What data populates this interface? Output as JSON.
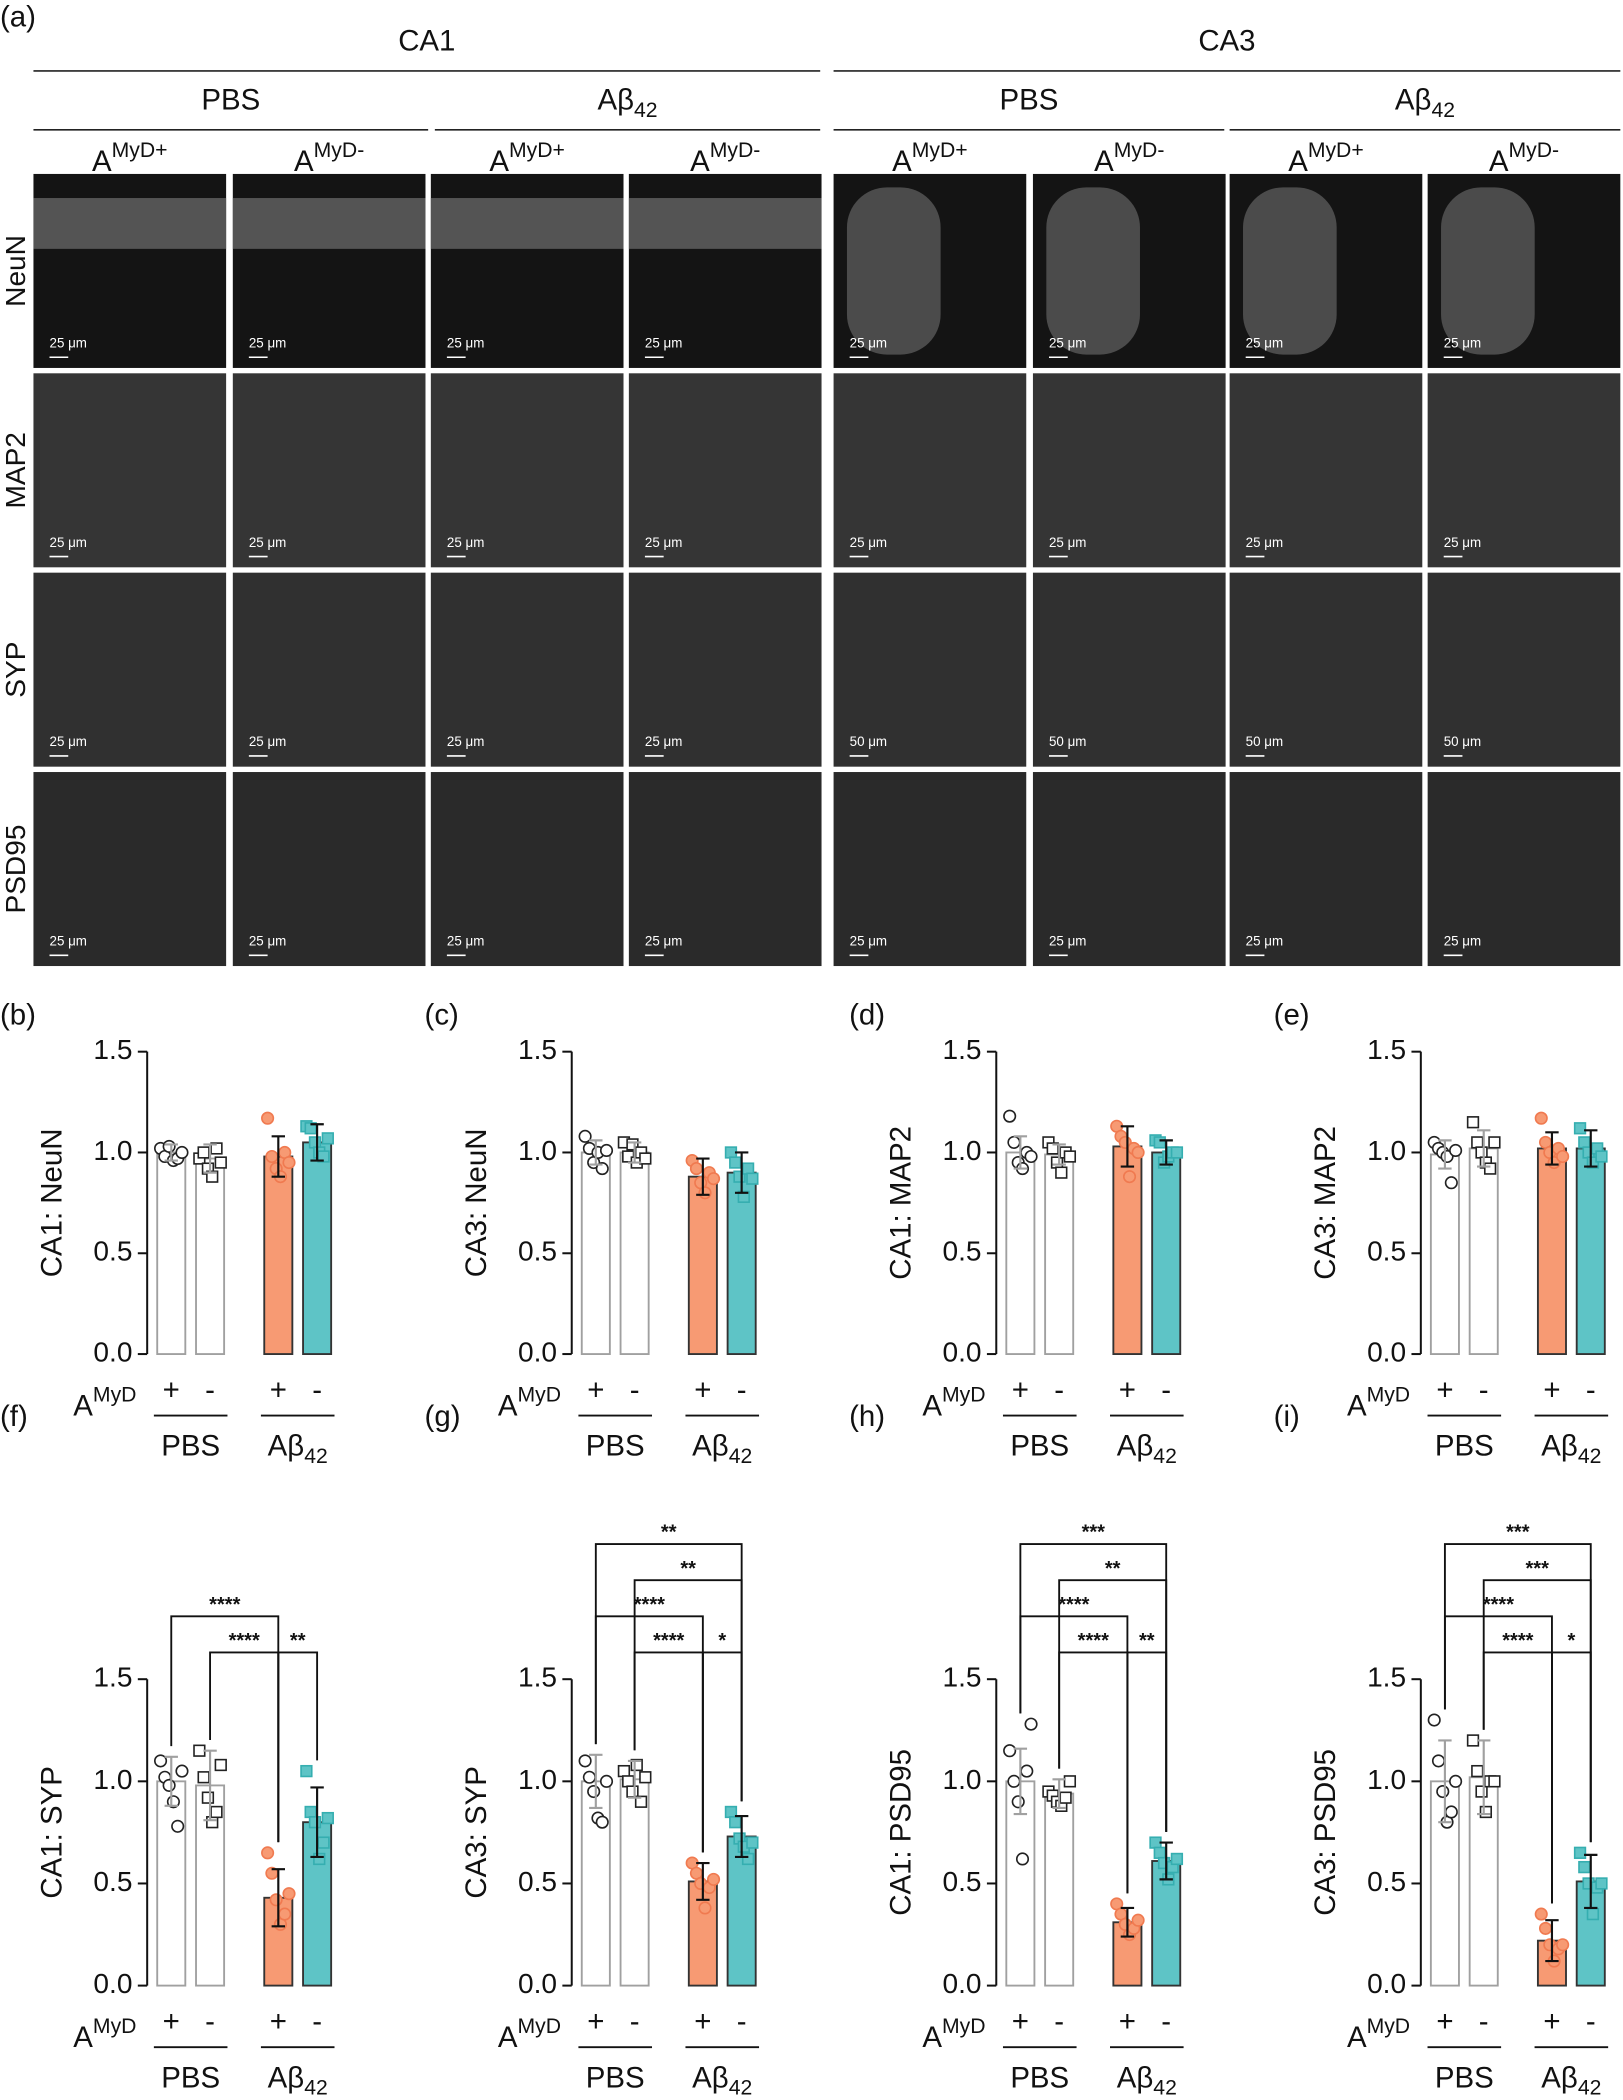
{
  "panel_a": {
    "label": "(a)",
    "regions": [
      "CA1",
      "CA3"
    ],
    "groups": [
      [
        "PBS"
      ],
      [
        "Aβ",
        "42"
      ],
      [
        "PBS"
      ],
      [
        "Aβ",
        "42"
      ]
    ],
    "columns": [
      [
        "A",
        "MyD+"
      ],
      [
        "A",
        "MyD-"
      ],
      [
        "A",
        "MyD+"
      ],
      [
        "A",
        "MyD-"
      ],
      [
        "A",
        "MyD+"
      ],
      [
        "A",
        "MyD-"
      ],
      [
        "A",
        "MyD+"
      ],
      [
        "A",
        "MyD-"
      ]
    ],
    "rows": [
      "NeuN",
      "MAP2",
      "SYP",
      "PSD95"
    ],
    "scale_bars": [
      [
        "25 μm",
        "25 μm",
        "25 μm",
        "25 μm",
        "25 μm",
        "25 μm",
        "25 μm",
        "25 μm"
      ],
      [
        "25 μm",
        "25 μm",
        "25 μm",
        "25 μm",
        "25 μm",
        "25 μm",
        "25 μm",
        "25 μm"
      ],
      [
        "25 μm",
        "25 μm",
        "25 μm",
        "25 μm",
        "50 μm",
        "50 μm",
        "50 μm",
        "50 μm"
      ],
      [
        "25 μm",
        "25 μm",
        "25 μm",
        "25 μm",
        "25 μm",
        "25 μm",
        "25 μm",
        "25 μm"
      ]
    ]
  },
  "chart_data": [
    {
      "type": "bar",
      "panel": "(b)",
      "ylabel": "CA1: NeuN",
      "categories": [
        "+",
        "-",
        "+",
        "-"
      ],
      "row_label": [
        "A",
        "MyD"
      ],
      "groups": [
        [
          "PBS"
        ],
        [
          "Aβ",
          "42"
        ]
      ],
      "ylim": [
        0,
        1.5
      ],
      "yticks": [
        {
          "value": 0,
          "label": "0.0"
        },
        0.5,
        {
          "value": 1,
          "label": "1.0"
        },
        1.5
      ],
      "values": [
        1.0,
        0.97,
        0.98,
        1.05
      ],
      "errors": [
        0.04,
        0.07,
        0.1,
        0.09
      ],
      "points": [
        [
          1.02,
          0.98,
          1.03,
          0.96,
          0.97,
          1.0
        ],
        [
          0.97,
          1.0,
          0.92,
          0.88,
          1.02,
          0.95
        ],
        [
          1.17,
          0.98,
          0.92,
          0.88,
          1.0,
          0.95
        ],
        [
          1.13,
          1.12,
          1.05,
          1.0,
          0.98,
          1.07
        ]
      ],
      "colors": [
        "#ffffff",
        "#ffffff",
        "#f79a73",
        "#5ec4c6"
      ],
      "edge_colors": [
        "#a0a0a0",
        "#a0a0a0",
        "#333333",
        "#333333"
      ],
      "marker_edges": [
        "#222222",
        "#222222",
        "#f07a50",
        "#35aeb0"
      ],
      "markers": [
        "circle",
        "square",
        "circle",
        "square"
      ],
      "brackets": []
    },
    {
      "type": "bar",
      "panel": "(c)",
      "ylabel": "CA3: NeuN",
      "categories": [
        "+",
        "-",
        "+",
        "-"
      ],
      "row_label": [
        "A",
        "MyD"
      ],
      "groups": [
        [
          "PBS"
        ],
        [
          "Aβ",
          "42"
        ]
      ],
      "ylim": [
        0,
        1.5
      ],
      "yticks": [
        {
          "value": 0,
          "label": "0.0"
        },
        0.5,
        {
          "value": 1,
          "label": "1.0"
        },
        1.5
      ],
      "values": [
        1.0,
        1.0,
        0.88,
        0.9
      ],
      "errors": [
        0.06,
        0.05,
        0.09,
        0.1
      ],
      "points": [
        [
          1.08,
          1.02,
          0.95,
          1.0,
          0.92,
          1.01
        ],
        [
          1.05,
          0.98,
          1.04,
          0.95,
          1.0,
          0.97
        ],
        [
          0.96,
          0.92,
          0.85,
          0.8,
          0.9,
          0.87
        ],
        [
          1.0,
          0.95,
          0.88,
          0.78,
          0.92,
          0.87
        ]
      ],
      "colors": [
        "#ffffff",
        "#ffffff",
        "#f79a73",
        "#5ec4c6"
      ],
      "edge_colors": [
        "#a0a0a0",
        "#a0a0a0",
        "#333333",
        "#333333"
      ],
      "marker_edges": [
        "#222222",
        "#222222",
        "#f07a50",
        "#35aeb0"
      ],
      "markers": [
        "circle",
        "square",
        "circle",
        "square"
      ],
      "brackets": []
    },
    {
      "type": "bar",
      "panel": "(d)",
      "ylabel": "CA1: MAP2",
      "categories": [
        "+",
        "-",
        "+",
        "-"
      ],
      "row_label": [
        "A",
        "MyD"
      ],
      "groups": [
        [
          "PBS"
        ],
        [
          "Aβ",
          "42"
        ]
      ],
      "ylim": [
        0,
        1.5
      ],
      "yticks": [
        {
          "value": 0,
          "label": "0.0"
        },
        0.5,
        {
          "value": 1,
          "label": "1.0"
        },
        1.5
      ],
      "values": [
        1.0,
        0.99,
        1.03,
        1.0
      ],
      "errors": [
        0.08,
        0.05,
        0.1,
        0.06
      ],
      "points": [
        [
          1.18,
          1.05,
          0.95,
          0.92,
          1.0,
          0.98
        ],
        [
          1.05,
          1.02,
          0.95,
          0.9,
          1.0,
          0.98
        ],
        [
          1.13,
          1.08,
          1.05,
          0.88,
          1.02,
          1.0
        ],
        [
          1.06,
          1.05,
          0.95,
          0.98,
          1.0,
          1.0
        ]
      ],
      "colors": [
        "#ffffff",
        "#ffffff",
        "#f79a73",
        "#5ec4c6"
      ],
      "edge_colors": [
        "#a0a0a0",
        "#a0a0a0",
        "#333333",
        "#333333"
      ],
      "marker_edges": [
        "#222222",
        "#222222",
        "#f07a50",
        "#35aeb0"
      ],
      "markers": [
        "circle",
        "square",
        "circle",
        "square"
      ],
      "brackets": []
    },
    {
      "type": "bar",
      "panel": "(e)",
      "ylabel": "CA3: MAP2",
      "categories": [
        "+",
        "-",
        "+",
        "-"
      ],
      "row_label": [
        "A",
        "MyD"
      ],
      "groups": [
        [
          "PBS"
        ],
        [
          "Aβ",
          "42"
        ]
      ],
      "ylim": [
        0,
        1.5
      ],
      "yticks": [
        {
          "value": 0,
          "label": "0.0"
        },
        0.5,
        {
          "value": 1,
          "label": "1.0"
        },
        1.5
      ],
      "values": [
        0.99,
        1.02,
        1.02,
        1.02
      ],
      "errors": [
        0.07,
        0.09,
        0.08,
        0.09
      ],
      "points": [
        [
          1.05,
          1.02,
          1.0,
          0.98,
          0.85,
          1.01
        ],
        [
          1.15,
          1.05,
          1.0,
          0.95,
          0.92,
          1.05
        ],
        [
          1.17,
          1.05,
          1.0,
          0.95,
          1.02,
          0.98
        ],
        [
          1.12,
          1.05,
          1.0,
          0.95,
          1.02,
          0.98
        ]
      ],
      "colors": [
        "#ffffff",
        "#ffffff",
        "#f79a73",
        "#5ec4c6"
      ],
      "edge_colors": [
        "#a0a0a0",
        "#a0a0a0",
        "#333333",
        "#333333"
      ],
      "marker_edges": [
        "#222222",
        "#222222",
        "#f07a50",
        "#35aeb0"
      ],
      "markers": [
        "circle",
        "square",
        "circle",
        "square"
      ],
      "brackets": []
    },
    {
      "type": "bar",
      "panel": "(f)",
      "ylabel": "CA1: SYP",
      "categories": [
        "+",
        "-",
        "+",
        "-"
      ],
      "row_label": [
        "A",
        "MyD"
      ],
      "groups": [
        [
          "PBS"
        ],
        [
          "Aβ",
          "42"
        ]
      ],
      "ylim": [
        0,
        1.5
      ],
      "yticks": [
        {
          "value": 0,
          "label": "0.0"
        },
        0.5,
        {
          "value": 1,
          "label": "1.0"
        },
        1.5
      ],
      "values": [
        1.0,
        0.98,
        0.43,
        0.8
      ],
      "errors": [
        0.12,
        0.17,
        0.14,
        0.17
      ],
      "points": [
        [
          1.1,
          1.02,
          0.98,
          0.9,
          0.78,
          1.05
        ],
        [
          1.15,
          1.02,
          0.92,
          0.8,
          0.85,
          1.08
        ],
        [
          0.65,
          0.55,
          0.42,
          0.3,
          0.35,
          0.45
        ],
        [
          1.05,
          0.85,
          0.8,
          0.62,
          0.7,
          0.82
        ]
      ],
      "colors": [
        "#ffffff",
        "#ffffff",
        "#f79a73",
        "#5ec4c6"
      ],
      "edge_colors": [
        "#a0a0a0",
        "#a0a0a0",
        "#333333",
        "#333333"
      ],
      "marker_edges": [
        "#222222",
        "#222222",
        "#f07a50",
        "#35aeb0"
      ],
      "markers": [
        "circle",
        "square",
        "circle",
        "square"
      ],
      "brackets": [
        {
          "from": 1,
          "to": 2,
          "label": "****"
        },
        {
          "from": 2,
          "to": 3,
          "label": "**"
        },
        {
          "from": 0,
          "to": 2,
          "label": "****"
        }
      ]
    },
    {
      "type": "bar",
      "panel": "(g)",
      "ylabel": "CA3: SYP",
      "categories": [
        "+",
        "-",
        "+",
        "-"
      ],
      "row_label": [
        "A",
        "MyD"
      ],
      "groups": [
        [
          "PBS"
        ],
        [
          "Aβ",
          "42"
        ]
      ],
      "ylim": [
        0,
        1.5
      ],
      "yticks": [
        {
          "value": 0,
          "label": "0.0"
        },
        0.5,
        {
          "value": 1,
          "label": "1.0"
        },
        1.5
      ],
      "values": [
        1.0,
        1.01,
        0.51,
        0.73
      ],
      "errors": [
        0.13,
        0.09,
        0.09,
        0.1
      ],
      "points": [
        [
          1.1,
          1.02,
          0.95,
          0.82,
          0.8,
          1.0
        ],
        [
          1.05,
          1.0,
          0.95,
          1.08,
          0.9,
          1.02
        ],
        [
          0.6,
          0.55,
          0.5,
          0.38,
          0.48,
          0.52
        ],
        [
          0.85,
          0.8,
          0.72,
          0.68,
          0.62,
          0.7
        ]
      ],
      "colors": [
        "#ffffff",
        "#ffffff",
        "#f79a73",
        "#5ec4c6"
      ],
      "edge_colors": [
        "#a0a0a0",
        "#a0a0a0",
        "#333333",
        "#333333"
      ],
      "marker_edges": [
        "#222222",
        "#222222",
        "#f07a50",
        "#35aeb0"
      ],
      "markers": [
        "circle",
        "square",
        "circle",
        "square"
      ],
      "brackets": [
        {
          "from": 1,
          "to": 2,
          "label": "****"
        },
        {
          "from": 2,
          "to": 3,
          "label": "*"
        },
        {
          "from": 0,
          "to": 2,
          "label": "****"
        },
        {
          "from": 1,
          "to": 3,
          "label": "**"
        },
        {
          "from": 0,
          "to": 3,
          "label": "**"
        }
      ]
    },
    {
      "type": "bar",
      "panel": "(h)",
      "ylabel": "CA1: PSD95",
      "categories": [
        "+",
        "-",
        "+",
        "-"
      ],
      "row_label": [
        "A",
        "MyD"
      ],
      "groups": [
        [
          "PBS"
        ],
        [
          "Aβ",
          "42"
        ]
      ],
      "ylim": [
        0,
        1.5
      ],
      "yticks": [
        {
          "value": 0,
          "label": "0.0"
        },
        0.5,
        {
          "value": 1,
          "label": "1.0"
        },
        1.5
      ],
      "values": [
        1.0,
        0.94,
        0.31,
        0.61
      ],
      "errors": [
        0.16,
        0.07,
        0.07,
        0.09
      ],
      "points": [
        [
          1.15,
          1.0,
          0.9,
          0.62,
          1.05,
          1.28
        ],
        [
          0.95,
          0.93,
          0.9,
          0.88,
          0.92,
          1.0
        ],
        [
          0.4,
          0.35,
          0.3,
          0.25,
          0.28,
          0.32
        ],
        [
          0.7,
          0.65,
          0.6,
          0.52,
          0.58,
          0.62
        ]
      ],
      "colors": [
        "#ffffff",
        "#ffffff",
        "#f79a73",
        "#5ec4c6"
      ],
      "edge_colors": [
        "#a0a0a0",
        "#a0a0a0",
        "#333333",
        "#333333"
      ],
      "marker_edges": [
        "#222222",
        "#222222",
        "#f07a50",
        "#35aeb0"
      ],
      "markers": [
        "circle",
        "square",
        "circle",
        "square"
      ],
      "brackets": [
        {
          "from": 1,
          "to": 2,
          "label": "****"
        },
        {
          "from": 2,
          "to": 3,
          "label": "**"
        },
        {
          "from": 0,
          "to": 2,
          "label": "****"
        },
        {
          "from": 1,
          "to": 3,
          "label": "**"
        },
        {
          "from": 0,
          "to": 3,
          "label": "***"
        }
      ]
    },
    {
      "type": "bar",
      "panel": "(i)",
      "ylabel": "CA3: PSD95",
      "categories": [
        "+",
        "-",
        "+",
        "-"
      ],
      "row_label": [
        "A",
        "MyD"
      ],
      "groups": [
        [
          "PBS"
        ],
        [
          "Aβ",
          "42"
        ]
      ],
      "ylim": [
        0,
        1.5
      ],
      "yticks": [
        {
          "value": 0,
          "label": "0.0"
        },
        0.5,
        {
          "value": 1,
          "label": "1.0"
        },
        1.5
      ],
      "values": [
        1.0,
        1.02,
        0.22,
        0.51
      ],
      "errors": [
        0.2,
        0.18,
        0.1,
        0.13
      ],
      "points": [
        [
          1.3,
          1.1,
          0.95,
          0.8,
          0.85,
          1.0
        ],
        [
          1.2,
          1.05,
          0.95,
          0.85,
          1.0,
          1.0
        ],
        [
          0.35,
          0.28,
          0.2,
          0.12,
          0.18,
          0.2
        ],
        [
          0.65,
          0.58,
          0.5,
          0.35,
          0.48,
          0.5
        ]
      ],
      "colors": [
        "#ffffff",
        "#ffffff",
        "#f79a73",
        "#5ec4c6"
      ],
      "edge_colors": [
        "#a0a0a0",
        "#a0a0a0",
        "#333333",
        "#333333"
      ],
      "marker_edges": [
        "#222222",
        "#222222",
        "#f07a50",
        "#35aeb0"
      ],
      "markers": [
        "circle",
        "square",
        "circle",
        "square"
      ],
      "brackets": [
        {
          "from": 1,
          "to": 2,
          "label": "****"
        },
        {
          "from": 2,
          "to": 3,
          "label": "*"
        },
        {
          "from": 0,
          "to": 2,
          "label": "****"
        },
        {
          "from": 1,
          "to": 3,
          "label": "***"
        },
        {
          "from": 0,
          "to": 3,
          "label": "***"
        }
      ]
    }
  ]
}
